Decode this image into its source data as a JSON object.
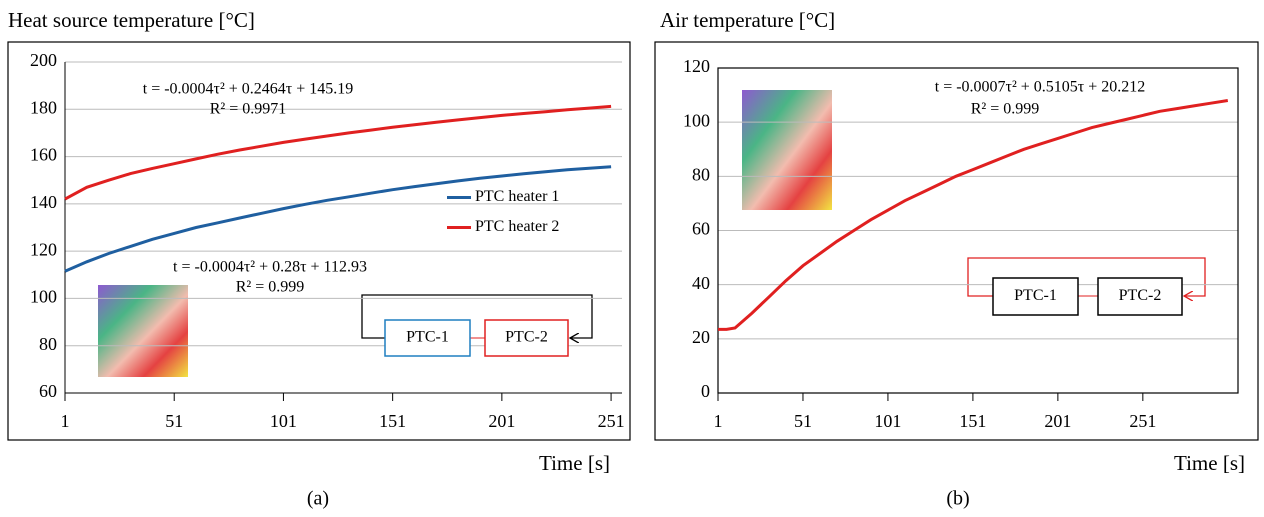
{
  "chart_data": [
    {
      "type": "line",
      "title": "Heat source temperature [°C]",
      "xlabel": "Time [s]",
      "panel_label": "(a)",
      "x": [
        1,
        11,
        21,
        31,
        41,
        51,
        61,
        71,
        81,
        91,
        101,
        111,
        121,
        131,
        141,
        151,
        161,
        171,
        181,
        191,
        201,
        211,
        221,
        231,
        241,
        251
      ],
      "series": [
        {
          "name": "PTC heater 1",
          "color": "#1f5fa0",
          "values": [
            111.5,
            115.5,
            119,
            122,
            125,
            127.5,
            130,
            132,
            134,
            136,
            138,
            139.8,
            141.5,
            143,
            144.5,
            146,
            147.3,
            148.5,
            149.7,
            150.8,
            151.8,
            152.7,
            153.6,
            154.4,
            155.1,
            155.7
          ]
        },
        {
          "name": "PTC heater 2",
          "color": "#e02020",
          "values": [
            142,
            147,
            150,
            152.8,
            155,
            157,
            159,
            161,
            162.8,
            164.4,
            166,
            167.4,
            168.7,
            170,
            171.2,
            172.4,
            173.5,
            174.5,
            175.5,
            176.5,
            177.4,
            178.2,
            179,
            179.8,
            180.5,
            181.2
          ]
        }
      ],
      "xlim": [
        1,
        256
      ],
      "xticks": [
        1,
        51,
        101,
        151,
        201,
        251
      ],
      "ylim": [
        60,
        200
      ],
      "yticks": [
        60,
        80,
        100,
        120,
        140,
        160,
        180,
        200
      ],
      "grid": true,
      "legend": "right",
      "annotations": [
        {
          "text": "t = -0.0004τ² + 0.2464τ + 145.19",
          "color": "#e02020"
        },
        {
          "text": "R² = 0.9971",
          "color": "#e02020"
        },
        {
          "text": "t = -0.0004τ² + 0.28τ + 112.93",
          "color": "#1f7fc0"
        },
        {
          "text": "R² = 0.999",
          "color": "#1f7fc0"
        }
      ],
      "schematic": [
        "PTC-1",
        "PTC-2"
      ]
    },
    {
      "type": "line",
      "title": "Air temperature [°C]",
      "xlabel": "Time [s]",
      "panel_label": "(b)",
      "x": [
        1,
        6,
        11,
        21,
        31,
        41,
        51,
        61,
        71,
        81,
        91,
        101,
        111,
        121,
        131,
        141,
        151,
        161,
        171,
        181,
        191,
        201,
        211,
        221,
        231,
        241,
        251,
        261,
        271,
        281,
        291,
        301
      ],
      "series": [
        {
          "color": "#e02020",
          "values": [
            23.5,
            23.5,
            24,
            29.5,
            35.5,
            41.5,
            47,
            51.5,
            56,
            60,
            64,
            67.5,
            71,
            74,
            77,
            80,
            82.5,
            85,
            87.5,
            90,
            92,
            94,
            96,
            98,
            99.5,
            101,
            102.5,
            104,
            105,
            106,
            107,
            108
          ]
        }
      ],
      "xlim": [
        1,
        307
      ],
      "xticks": [
        1,
        51,
        101,
        151,
        201,
        251
      ],
      "ylim": [
        0,
        120
      ],
      "yticks": [
        0,
        20,
        40,
        60,
        80,
        100,
        120
      ],
      "grid": true,
      "annotations": [
        {
          "text": "t = -0.0007τ² + 0.5105τ + 20.212",
          "color": "#000000"
        },
        {
          "text": "R² = 0.999",
          "color": "#000000"
        }
      ],
      "schematic": [
        "PTC-1",
        "PTC-2"
      ]
    }
  ]
}
